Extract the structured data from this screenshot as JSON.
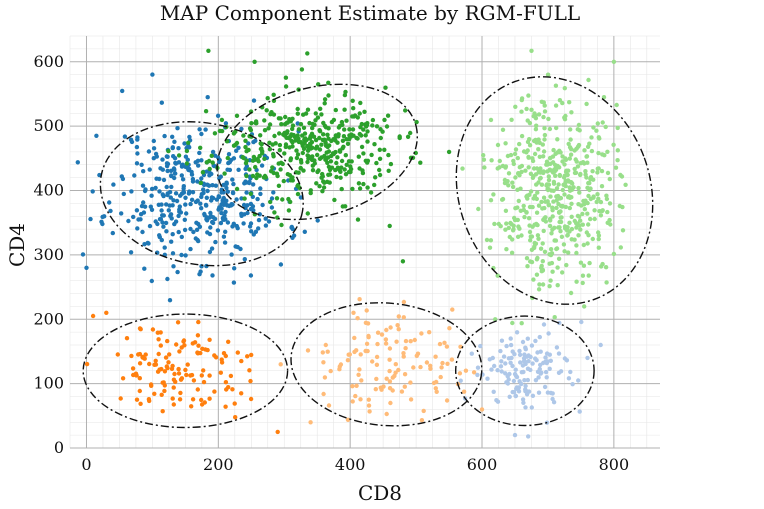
{
  "chart_data": {
    "type": "scatter",
    "title": "MAP Component Estimate by RGM-FULL",
    "xlabel": "CD8",
    "ylabel": "CD4",
    "xlim": [
      -25,
      870
    ],
    "ylim": [
      0,
      640
    ],
    "xticks": [
      0,
      200,
      400,
      600,
      800
    ],
    "yticks": [
      0,
      100,
      200,
      300,
      400,
      500,
      600
    ],
    "grid": true,
    "clusters": [
      {
        "name": "cluster-1",
        "color": "#1f77b4",
        "center": [
          170,
          395
        ],
        "spread": [
          65,
          55
        ],
        "n": 420,
        "seed": 11,
        "extra": [
          [
            0,
            280
          ],
          [
            100,
            580
          ],
          [
            15,
            485
          ],
          [
            295,
            285
          ],
          [
            315,
            330
          ]
        ]
      },
      {
        "name": "cluster-2",
        "color": "#2ca02c",
        "center": [
          330,
          465
        ],
        "spread": [
          70,
          40
        ],
        "n": 430,
        "seed": 23,
        "extra": [
          [
            185,
            617
          ],
          [
            335,
            613
          ],
          [
            255,
            600
          ],
          [
            460,
            345
          ],
          [
            480,
            290
          ],
          [
            550,
            460
          ]
        ]
      },
      {
        "name": "cluster-3",
        "color": "#98df8a",
        "center": [
          710,
          405
        ],
        "spread": [
          45,
          72
        ],
        "n": 520,
        "seed": 37,
        "extra": [
          [
            675,
            617
          ],
          [
            785,
            545
          ],
          [
            620,
            200
          ],
          [
            755,
            220
          ],
          [
            800,
            600
          ]
        ]
      },
      {
        "name": "cluster-4",
        "color": "#ff7f0e",
        "center": [
          140,
          120
        ],
        "spread": [
          55,
          35
        ],
        "n": 130,
        "seed": 51,
        "extra": [
          [
            10,
            205
          ],
          [
            290,
            25
          ],
          [
            30,
            210
          ]
        ]
      },
      {
        "name": "cluster-5",
        "color": "#ffbb78",
        "center": [
          455,
          125
        ],
        "spread": [
          55,
          40
        ],
        "n": 120,
        "seed": 67,
        "extra": [
          [
            555,
            215
          ],
          [
            405,
            210
          ],
          [
            600,
            60
          ],
          [
            340,
            40
          ]
        ]
      },
      {
        "name": "cluster-6",
        "color": "#aec7e8",
        "center": [
          665,
          120
        ],
        "spread": [
          35,
          30
        ],
        "n": 140,
        "seed": 83,
        "extra": [
          [
            780,
            160
          ],
          [
            650,
            20
          ],
          [
            670,
            18
          ],
          [
            760,
            140
          ]
        ]
      }
    ],
    "ellipses": [
      {
        "name": "ellipse-1",
        "cx": 175,
        "cy": 395,
        "rx": 155,
        "ry": 110,
        "angle": 10
      },
      {
        "name": "ellipse-2",
        "cx": 350,
        "cy": 460,
        "rx": 155,
        "ry": 100,
        "angle": -15
      },
      {
        "name": "ellipse-3",
        "cx": 710,
        "cy": 400,
        "rx": 145,
        "ry": 180,
        "angle": -20
      },
      {
        "name": "ellipse-4",
        "cx": 150,
        "cy": 120,
        "rx": 155,
        "ry": 88,
        "angle": 0
      },
      {
        "name": "ellipse-5",
        "cx": 455,
        "cy": 130,
        "rx": 145,
        "ry": 95,
        "angle": 5
      },
      {
        "name": "ellipse-6",
        "cx": 665,
        "cy": 120,
        "rx": 105,
        "ry": 85,
        "angle": 0
      }
    ]
  }
}
